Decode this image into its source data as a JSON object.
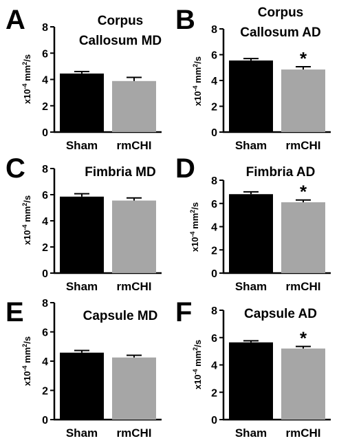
{
  "chart_data": [
    {
      "type": "bar",
      "panel": "A",
      "title": [
        "Corpus",
        "Callosum MD"
      ],
      "ylabel": {
        "base": "x10",
        "exp": "-4",
        "rest": " mm",
        "exp2": "2",
        "tail": "/s"
      },
      "categories": [
        "Sham",
        "rmCHI"
      ],
      "values": [
        4.45,
        3.88
      ],
      "errors": [
        0.15,
        0.28
      ],
      "colors": [
        "#000000",
        "#a6a6a6"
      ],
      "ylim": [
        0,
        8
      ],
      "yticks": [
        0,
        2,
        4,
        6,
        8
      ],
      "significance": [],
      "grid": false,
      "legend": "none"
    },
    {
      "type": "bar",
      "panel": "B",
      "title": [
        "Corpus",
        "Callosum AD"
      ],
      "ylabel": {
        "base": "x10",
        "exp": "-4",
        "rest": " mm",
        "exp2": "2",
        "tail": "/s"
      },
      "categories": [
        "Sham",
        "rmCHI"
      ],
      "values": [
        5.55,
        4.85
      ],
      "errors": [
        0.15,
        0.22
      ],
      "colors": [
        "#000000",
        "#a6a6a6"
      ],
      "ylim": [
        0,
        8
      ],
      "yticks": [
        0,
        2,
        4,
        6,
        8
      ],
      "significance": [
        {
          "category": "rmCHI",
          "label": "*"
        }
      ],
      "grid": false,
      "legend": "none"
    },
    {
      "type": "bar",
      "panel": "C",
      "title": [
        "Fimbria MD"
      ],
      "ylabel": {
        "base": "x10",
        "exp": "-4",
        "rest": " mm",
        "exp2": "2",
        "tail": "/s"
      },
      "categories": [
        "Sham",
        "rmCHI"
      ],
      "values": [
        5.85,
        5.55
      ],
      "errors": [
        0.22,
        0.2
      ],
      "colors": [
        "#000000",
        "#a6a6a6"
      ],
      "ylim": [
        0,
        8
      ],
      "yticks": [
        0,
        2,
        4,
        6,
        8
      ],
      "significance": [],
      "grid": false,
      "legend": "none"
    },
    {
      "type": "bar",
      "panel": "D",
      "title": [
        "Fimbria AD"
      ],
      "ylabel": {
        "base": "x10",
        "exp": "-4",
        "rest": " mm",
        "exp2": "2",
        "tail": "/s"
      },
      "categories": [
        "Sham",
        "rmCHI"
      ],
      "values": [
        6.8,
        6.1
      ],
      "errors": [
        0.2,
        0.2
      ],
      "colors": [
        "#000000",
        "#a6a6a6"
      ],
      "ylim": [
        0,
        8
      ],
      "yticks": [
        0,
        2,
        4,
        6,
        8
      ],
      "significance": [
        {
          "category": "rmCHI",
          "label": "*"
        }
      ],
      "grid": false,
      "legend": "none"
    },
    {
      "type": "bar",
      "panel": "E",
      "title": [
        "Capsule MD"
      ],
      "ylabel": {
        "base": "x10",
        "exp": "-4",
        "rest": " mm",
        "exp2": "2",
        "tail": "/s"
      },
      "categories": [
        "Sham",
        "rmCHI"
      ],
      "values": [
        4.58,
        4.25
      ],
      "errors": [
        0.15,
        0.15
      ],
      "colors": [
        "#000000",
        "#a6a6a6"
      ],
      "ylim": [
        0,
        8
      ],
      "yticks": [
        0,
        2,
        4,
        6,
        8
      ],
      "significance": [],
      "grid": false,
      "legend": "none"
    },
    {
      "type": "bar",
      "panel": "F",
      "title": [
        "Capsule AD"
      ],
      "ylabel": {
        "base": "x10",
        "exp": "-4",
        "rest": " mm",
        "exp2": "2",
        "tail": "/s"
      },
      "categories": [
        "Sham",
        "rmCHI"
      ],
      "values": [
        5.65,
        5.2
      ],
      "errors": [
        0.12,
        0.15
      ],
      "colors": [
        "#000000",
        "#a6a6a6"
      ],
      "ylim": [
        0,
        8
      ],
      "yticks": [
        0,
        2,
        4,
        6,
        8
      ],
      "significance": [
        {
          "category": "rmCHI",
          "label": "*"
        }
      ],
      "grid": false,
      "legend": "none"
    }
  ]
}
